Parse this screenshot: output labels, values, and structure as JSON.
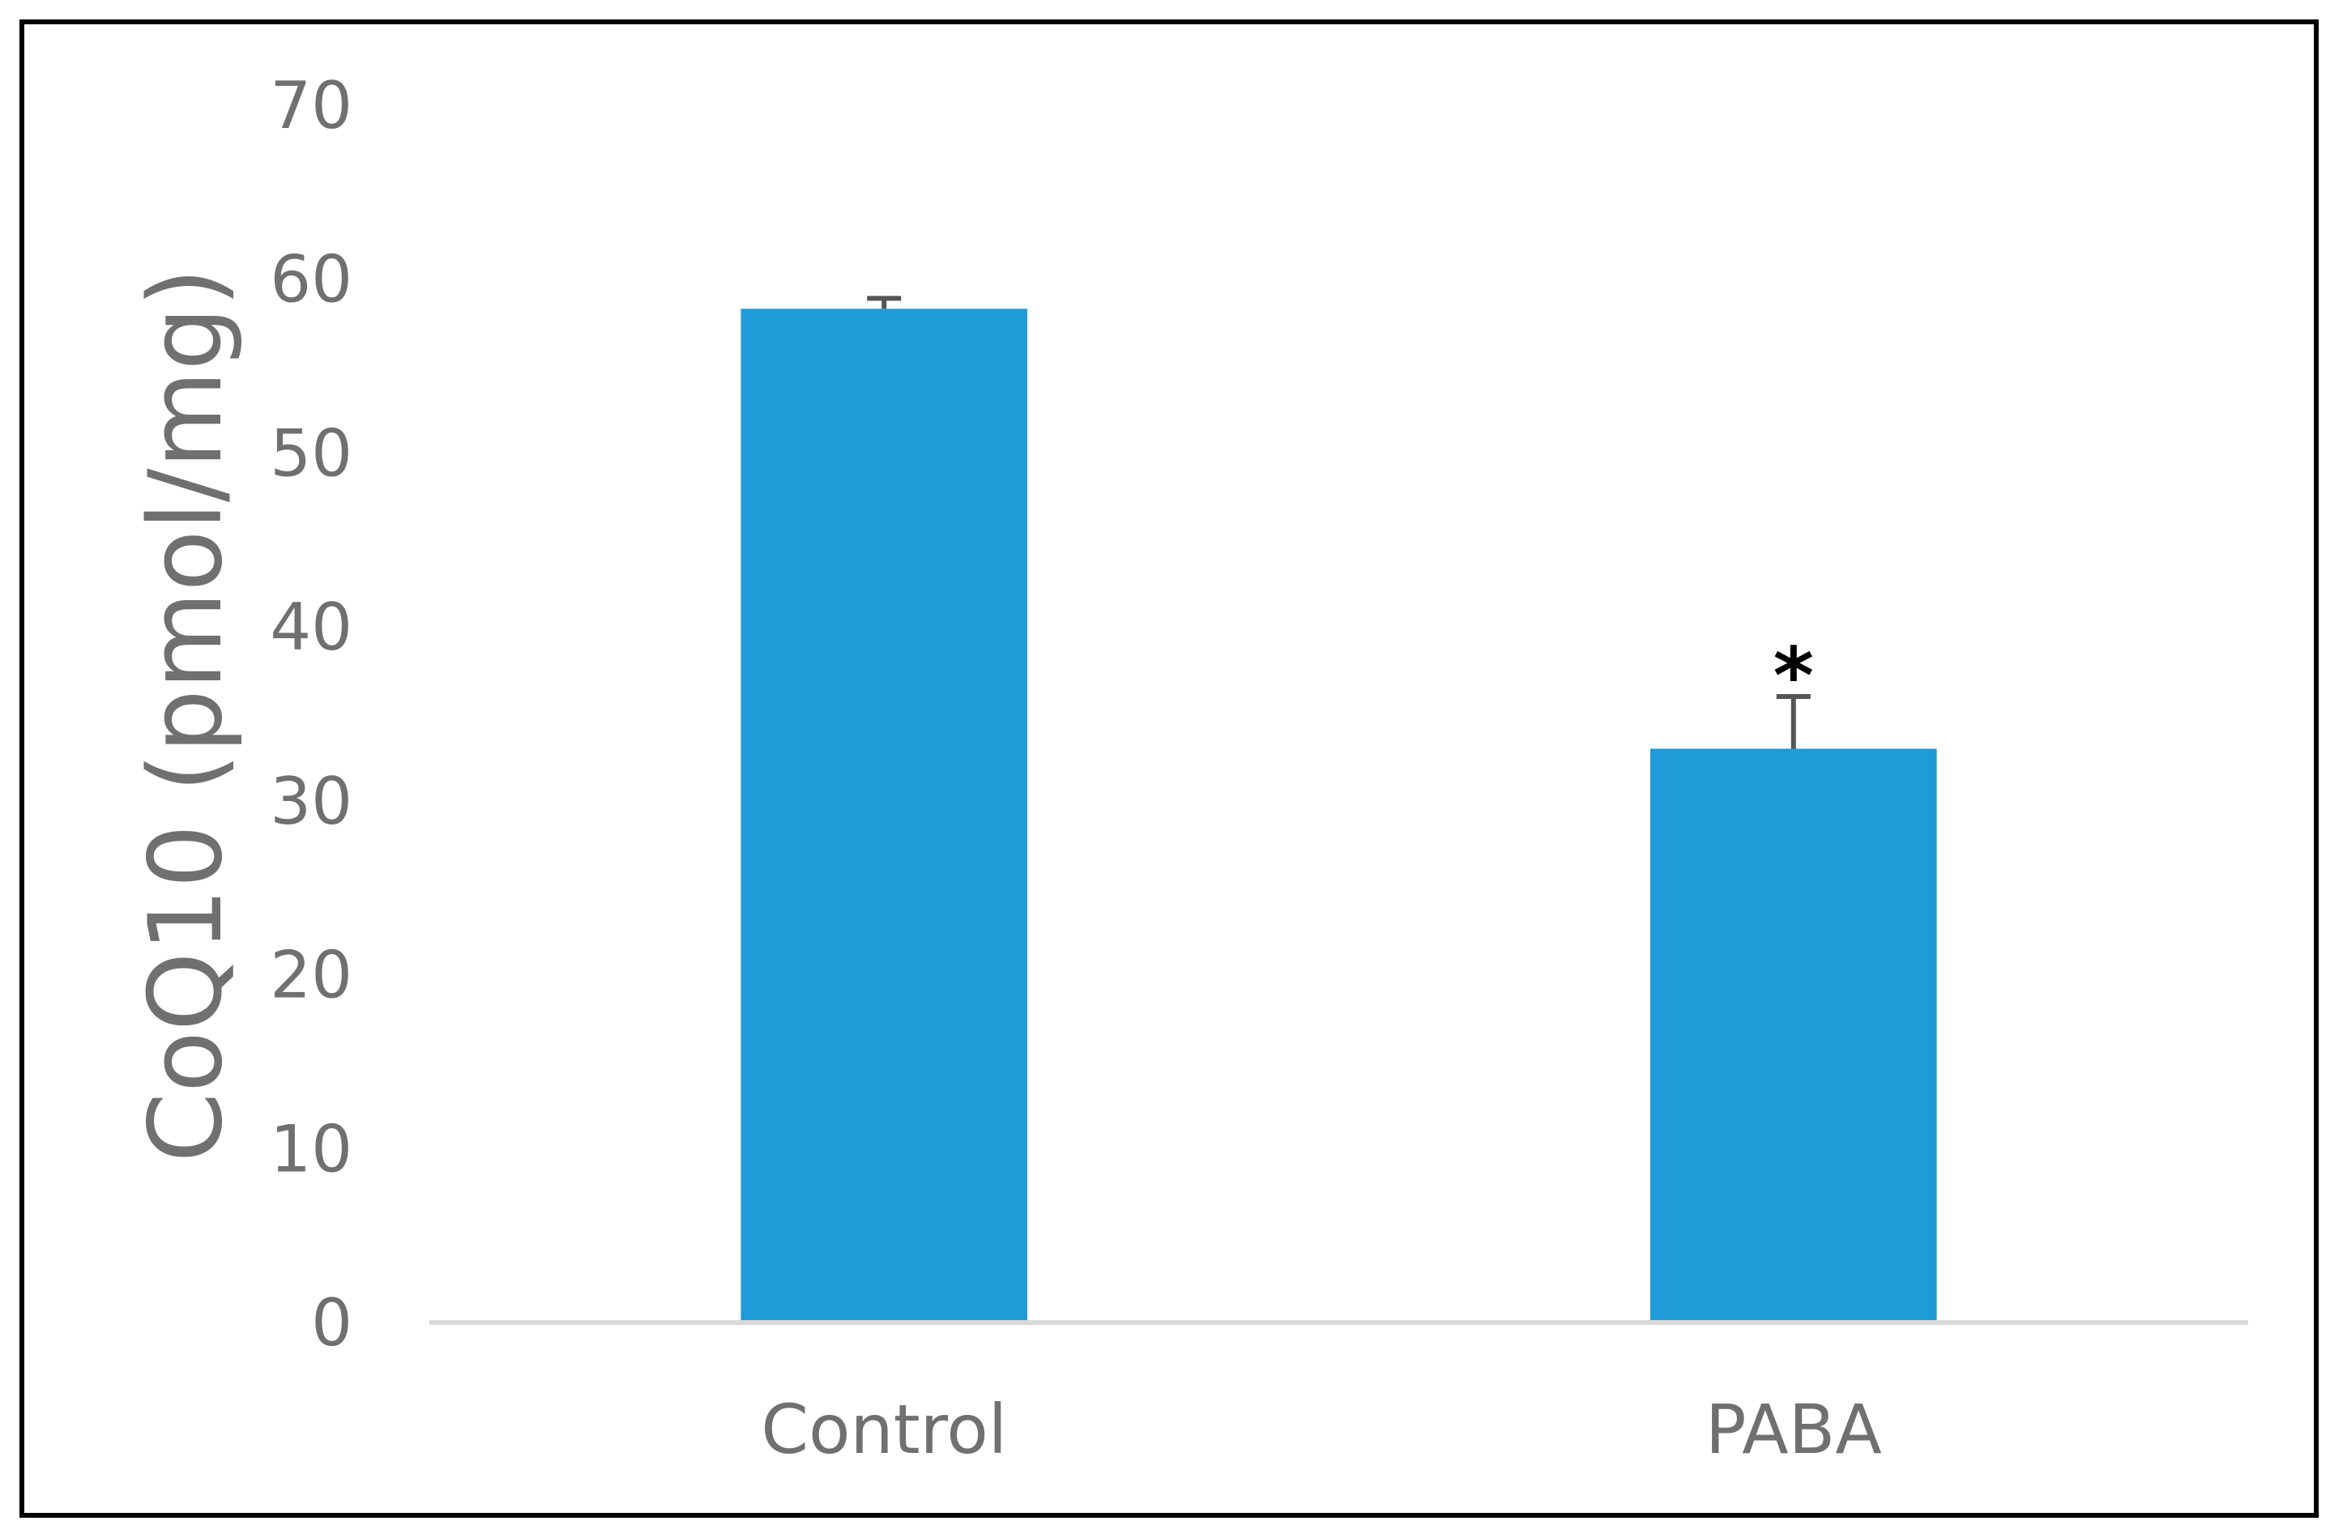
{
  "chart_data": {
    "type": "bar",
    "categories": [
      "Control",
      "PABA"
    ],
    "values": [
      58.3,
      33.0
    ],
    "error": [
      0.6,
      3.0
    ],
    "annotations": [
      "",
      "*"
    ],
    "ylabel": "CoQ10 (pmol/mg)",
    "xlabel": "",
    "ylim": [
      0,
      70
    ],
    "yticks": [
      0,
      10,
      20,
      30,
      40,
      50,
      60,
      70
    ],
    "grid": false,
    "legend": "none",
    "colors": {
      "bar": "#1f9bd7",
      "error": "#555555",
      "axis": "#d9d9d9",
      "text": "#707070"
    }
  }
}
